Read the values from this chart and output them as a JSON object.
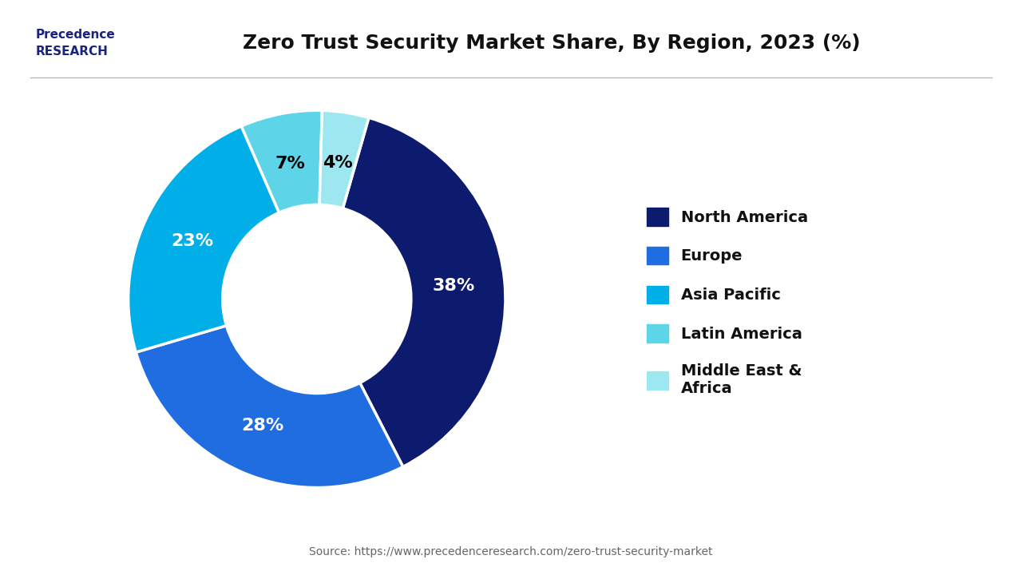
{
  "title": "Zero Trust Security Market Share, By Region, 2023 (%)",
  "legend_labels": [
    "North America",
    "Europe",
    "Asia Pacific",
    "Latin America",
    "Middle East &\nAfrica"
  ],
  "values": [
    38,
    28,
    23,
    7,
    4
  ],
  "colors": [
    "#0d1b6e",
    "#1f6de0",
    "#00aee8",
    "#5dd4e8",
    "#9de8f0"
  ],
  "pct_labels": [
    "38%",
    "28%",
    "23%",
    "7%",
    "4%"
  ],
  "pct_colors": [
    "white",
    "white",
    "white",
    "black",
    "black"
  ],
  "source_text": "Source: https://www.precedenceresearch.com/zero-trust-security-market",
  "background_color": "#ffffff",
  "title_fontsize": 18,
  "legend_fontsize": 14,
  "pct_fontsize": 16,
  "startangle": 74
}
